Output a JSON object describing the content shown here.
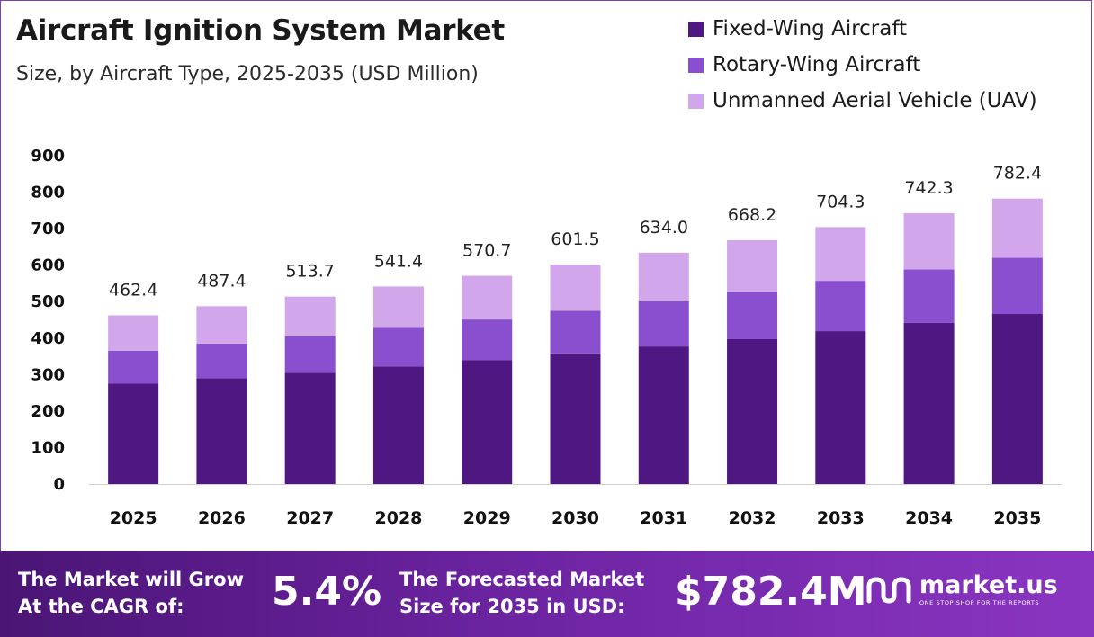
{
  "header": {
    "title": "Aircraft Ignition System Market",
    "subtitle": "Size, by Aircraft Type, 2025-2035 (USD Million)"
  },
  "colors": {
    "fixed_wing": "#4e1782",
    "rotary_wing": "#8a4fce",
    "uav": "#d1a6ea",
    "footer_start": "#4a1575",
    "footer_end": "#8a35c2"
  },
  "chart_data": {
    "type": "bar",
    "stacked": true,
    "categories": [
      "2025",
      "2026",
      "2027",
      "2028",
      "2029",
      "2030",
      "2031",
      "2032",
      "2033",
      "2034",
      "2035"
    ],
    "series": [
      {
        "name": "Fixed-Wing Aircraft",
        "values": [
          275,
          290,
          305,
          322,
          339,
          358,
          377,
          397,
          419,
          442,
          466
        ]
      },
      {
        "name": "Rotary-Wing Aircraft",
        "values": [
          90,
          95,
          100,
          106,
          112,
          117,
          124,
          131,
          138,
          146,
          154
        ]
      },
      {
        "name": "Unmanned Aerial Vehicle (UAV)",
        "values": [
          97.4,
          102.4,
          108.7,
          113.4,
          119.7,
          126.5,
          133.0,
          140.2,
          147.3,
          154.3,
          162.4
        ]
      }
    ],
    "totals": [
      "462.4",
      "487.4",
      "513.7",
      "541.4",
      "570.7",
      "601.5",
      "634.0",
      "668.2",
      "704.3",
      "742.3",
      "782.4"
    ],
    "yticks": [
      "0",
      "100",
      "200",
      "300",
      "400",
      "500",
      "600",
      "700",
      "800",
      "900"
    ],
    "ylim": [
      0,
      900
    ],
    "grid": false,
    "legend_position": "top-right"
  },
  "footer": {
    "cagr_label_line1": "The Market will Grow",
    "cagr_label_line2": "At the CAGR of:",
    "cagr_value": "5.4%",
    "forecast_label_line1": "The Forecasted Market",
    "forecast_label_line2": "Size for 2035 in USD:",
    "forecast_value": "$782.4M",
    "brand_name": "market.us",
    "brand_tagline": "ONE STOP SHOP FOR THE REPORTS",
    "brand_icon": "market-us-logo-icon"
  }
}
